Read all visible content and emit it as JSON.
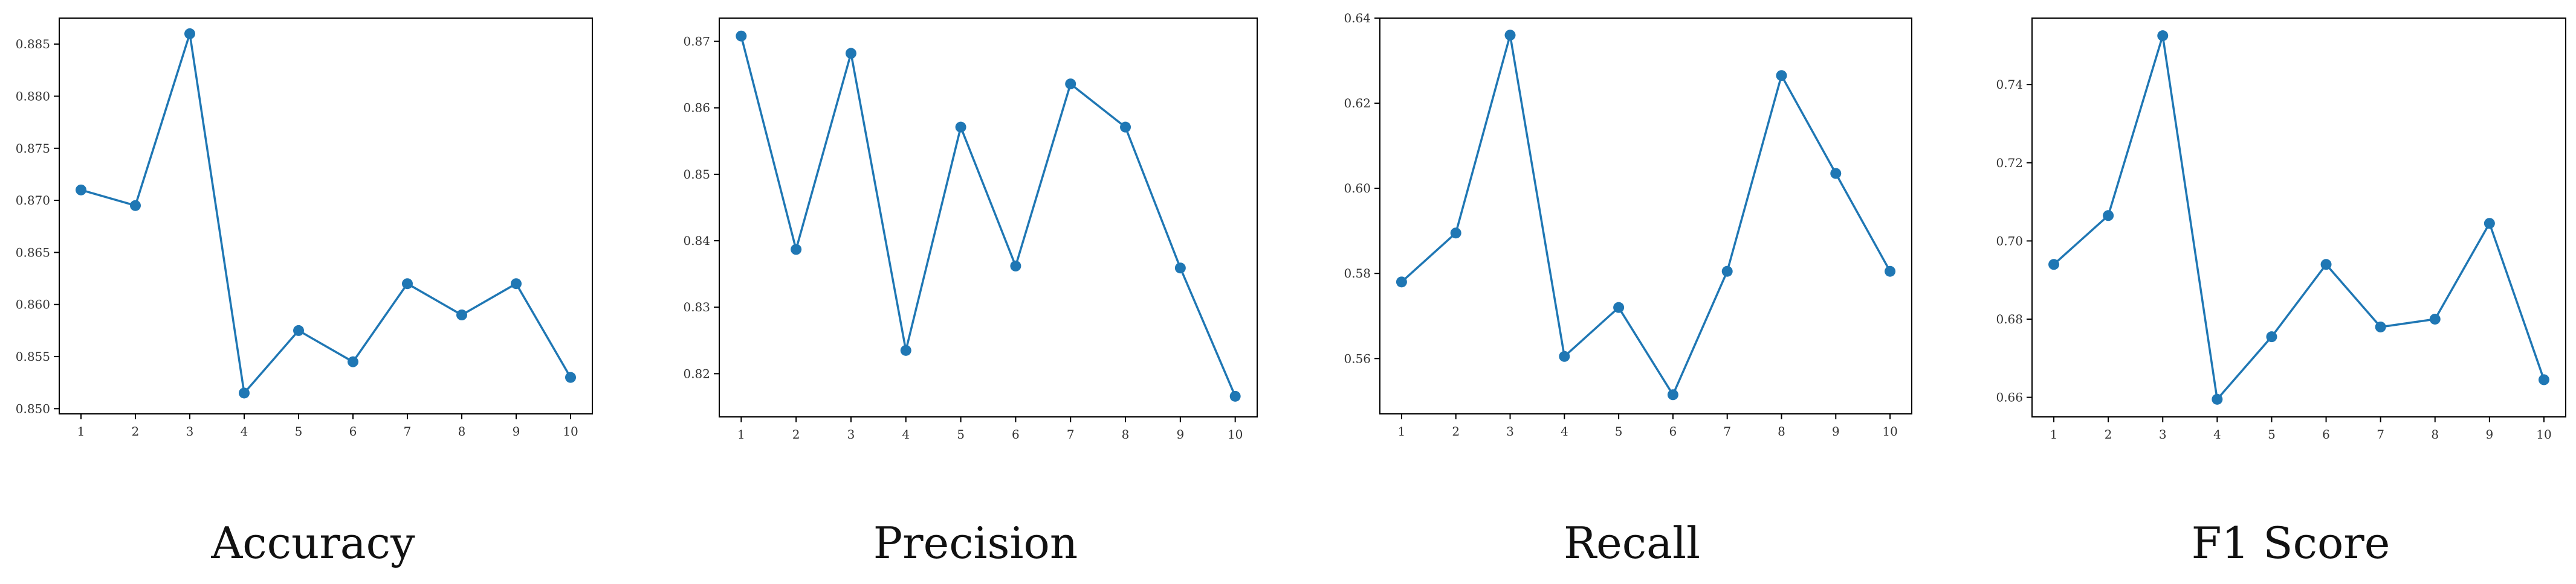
{
  "colors": {
    "series": "#1f77b4",
    "axes": "#000000",
    "text": "#111111"
  },
  "chart_data": [
    {
      "type": "line",
      "title": "Accuracy",
      "xlabel": "",
      "ylabel": "",
      "grid": false,
      "x": [
        1,
        2,
        3,
        4,
        5,
        6,
        7,
        8,
        9,
        10
      ],
      "xticks": [
        "1",
        "2",
        "3",
        "4",
        "5",
        "6",
        "7",
        "8",
        "9",
        "10"
      ],
      "xlim": [
        0.6,
        10.4
      ],
      "ylim": [
        0.8495,
        0.8875
      ],
      "yticks": [
        0.85,
        0.855,
        0.86,
        0.865,
        0.87,
        0.875,
        0.88,
        0.885
      ],
      "ytick_labels": [
        "0.850",
        "0.855",
        "0.860",
        "0.865",
        "0.870",
        "0.875",
        "0.880",
        "0.885"
      ],
      "series": [
        {
          "values": [
            0.871,
            0.8695,
            0.886,
            0.8515,
            0.8575,
            0.8545,
            0.862,
            0.859,
            0.862,
            0.853
          ]
        }
      ]
    },
    {
      "type": "line",
      "title": "Precision",
      "xlabel": "",
      "ylabel": "",
      "grid": false,
      "x": [
        1,
        2,
        3,
        4,
        5,
        6,
        7,
        8,
        9,
        10
      ],
      "xticks": [
        "1",
        "2",
        "3",
        "4",
        "5",
        "6",
        "7",
        "8",
        "9",
        "10"
      ],
      "xlim": [
        0.6,
        10.4
      ],
      "ylim": [
        0.8135,
        0.8735
      ],
      "yticks": [
        0.82,
        0.83,
        0.84,
        0.85,
        0.86,
        0.87
      ],
      "ytick_labels": [
        "0.82",
        "0.83",
        "0.84",
        "0.85",
        "0.86",
        "0.87"
      ],
      "series": [
        {
          "values": [
            0.8708,
            0.8387,
            0.8682,
            0.8235,
            0.8571,
            0.8362,
            0.8636,
            0.8571,
            0.8359,
            0.8166
          ]
        }
      ]
    },
    {
      "type": "line",
      "title": "Recall",
      "xlabel": "",
      "ylabel": "",
      "grid": false,
      "x": [
        1,
        2,
        3,
        4,
        5,
        6,
        7,
        8,
        9,
        10
      ],
      "xticks": [
        "1",
        "2",
        "3",
        "4",
        "5",
        "6",
        "7",
        "8",
        "9",
        "10"
      ],
      "xlim": [
        0.6,
        10.4
      ],
      "ylim": [
        0.547,
        0.64
      ],
      "yticks": [
        0.56,
        0.58,
        0.6,
        0.62,
        0.64
      ],
      "ytick_labels": [
        "0.56",
        "0.58",
        "0.60",
        "0.62",
        "0.64"
      ],
      "series": [
        {
          "values": [
            0.578,
            0.5895,
            0.636,
            0.5605,
            0.572,
            0.5515,
            0.5805,
            0.6265,
            0.6035,
            0.5805
          ]
        }
      ]
    },
    {
      "type": "line",
      "title": "F1 Score",
      "xlabel": "",
      "ylabel": "",
      "grid": false,
      "x": [
        1,
        2,
        3,
        4,
        5,
        6,
        7,
        8,
        9,
        10
      ],
      "xticks": [
        "1",
        "2",
        "3",
        "4",
        "5",
        "6",
        "7",
        "8",
        "9",
        "10"
      ],
      "xlim": [
        0.6,
        10.4
      ],
      "ylim": [
        0.655,
        0.757
      ],
      "yticks": [
        0.66,
        0.68,
        0.7,
        0.72,
        0.74
      ],
      "ytick_labels": [
        "0.66",
        "0.68",
        "0.70",
        "0.72",
        "0.74"
      ],
      "series": [
        {
          "values": [
            0.694,
            0.7065,
            0.7525,
            0.6595,
            0.6755,
            0.694,
            0.678,
            0.68,
            0.7045,
            0.6645
          ]
        }
      ]
    }
  ]
}
